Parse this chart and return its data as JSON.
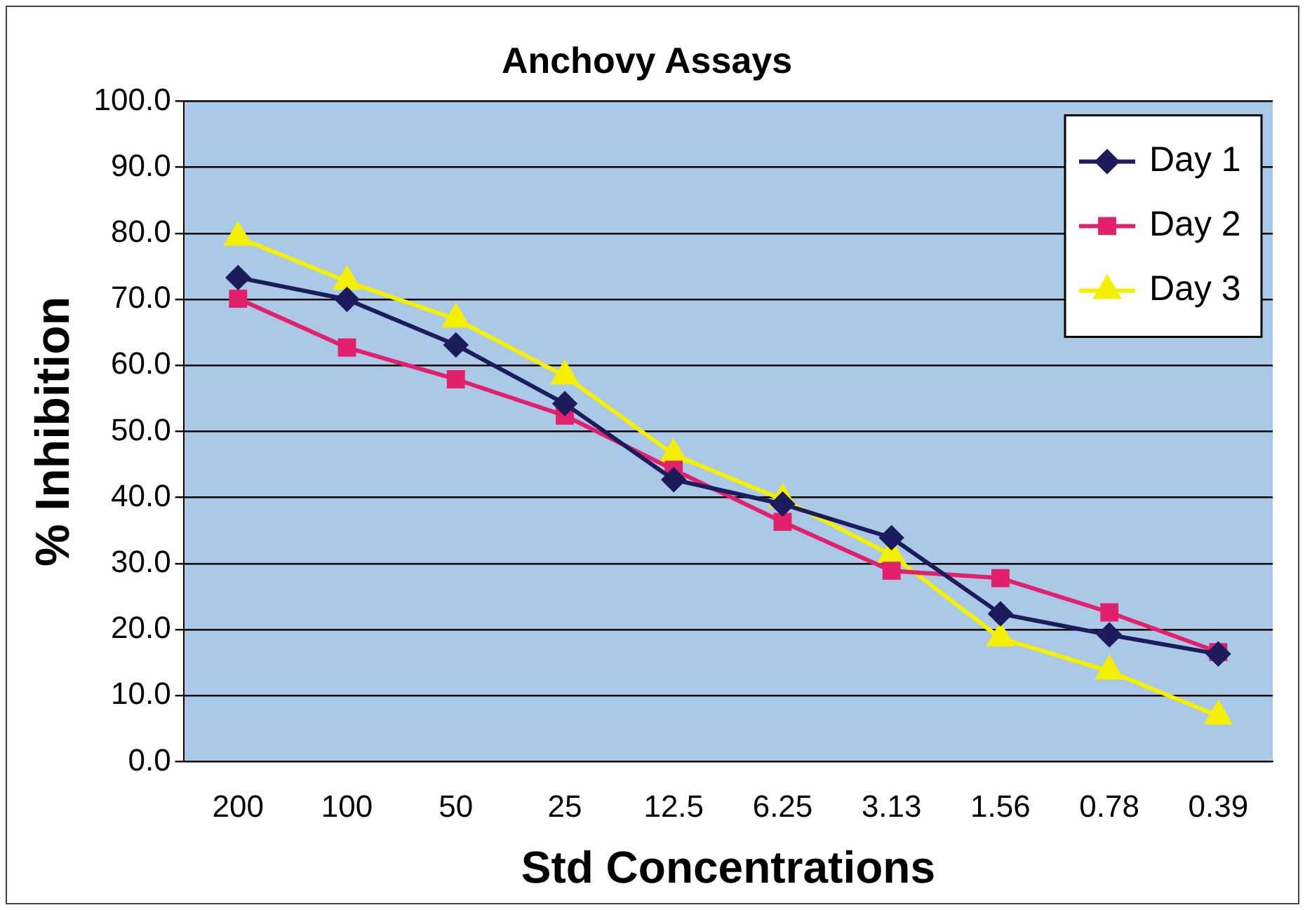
{
  "chart_data": {
    "type": "line",
    "title": "Anchovy Assays",
    "xlabel": "Std Concentrations",
    "ylabel": "% Inhibition",
    "categories": [
      "200",
      "100",
      "50",
      "25",
      "12.5",
      "6.25",
      "3.13",
      "1.56",
      "0.78",
      "0.39"
    ],
    "series": [
      {
        "name": "Day 1",
        "color": "#1c1c5c",
        "marker": "diamond",
        "values": [
          73.3,
          70.0,
          63.1,
          54.2,
          42.7,
          39.0,
          33.9,
          22.4,
          19.2,
          16.3
        ]
      },
      {
        "name": "Day 2",
        "color": "#e3206b",
        "marker": "square",
        "values": [
          70.1,
          62.7,
          57.9,
          52.4,
          44.2,
          36.3,
          28.9,
          27.8,
          22.6,
          16.6
        ]
      },
      {
        "name": "Day 3",
        "color": "#f5f000",
        "marker": "triangle",
        "values": [
          79.4,
          72.7,
          67.0,
          58.4,
          46.5,
          39.7,
          31.3,
          18.7,
          13.7,
          6.9
        ]
      }
    ],
    "ylim": [
      0,
      100
    ],
    "yticks": [
      {
        "value": 0,
        "label": "0.0"
      },
      {
        "value": 10,
        "label": "10.0"
      },
      {
        "value": 20,
        "label": "20.0"
      },
      {
        "value": 30,
        "label": "30.0"
      },
      {
        "value": 40,
        "label": "40.0"
      },
      {
        "value": 50,
        "label": "50.0"
      },
      {
        "value": 60,
        "label": "60.0"
      },
      {
        "value": 70,
        "label": "70.0"
      },
      {
        "value": 80,
        "label": "80.0"
      },
      {
        "value": 90,
        "label": "90.0"
      },
      {
        "value": 100,
        "label": "100.0"
      }
    ],
    "grid": "y",
    "legend": "top right",
    "line_style": "solid"
  }
}
